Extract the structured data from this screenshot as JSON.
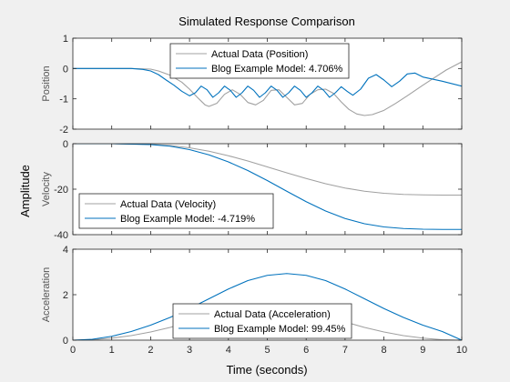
{
  "chart_data": {
    "type": "line",
    "title": "Simulated Response Comparison",
    "xlabel": "Time (seconds)",
    "shared_ylabel": "Amplitude",
    "xlim": [
      0,
      10
    ],
    "xticks": [
      0,
      1,
      2,
      3,
      4,
      5,
      6,
      7,
      8,
      9,
      10
    ],
    "colors": {
      "actual": "#a0a0a0",
      "model": "#0072bd"
    },
    "subplots": [
      {
        "ylabel": "Position",
        "ylim": [
          -2,
          1
        ],
        "yticks": [
          -2,
          -1,
          0,
          1
        ],
        "legend_position": "top-center",
        "series": [
          {
            "name": "Actual Data (Position)",
            "role": "actual",
            "x": [
              0,
              1.5,
              2,
              2.2,
              2.5,
              2.8,
              3,
              3.2,
              3.4,
              3.5,
              3.7,
              3.9,
              4.1,
              4.3,
              4.5,
              4.7,
              4.9,
              5.1,
              5.3,
              5.5,
              5.7,
              5.9,
              6.1,
              6.3,
              6.5,
              6.7,
              6.9,
              7.1,
              7.3,
              7.5,
              7.7,
              8,
              8.3,
              8.6,
              9,
              9.3,
              9.6,
              10
            ],
            "y": [
              0,
              0,
              -0.02,
              -0.08,
              -0.22,
              -0.45,
              -0.68,
              -0.95,
              -1.2,
              -1.25,
              -1.15,
              -0.85,
              -0.7,
              -0.85,
              -1.12,
              -1.2,
              -1.05,
              -0.72,
              -0.7,
              -0.95,
              -1.2,
              -1.15,
              -0.85,
              -0.7,
              -0.68,
              -0.82,
              -1.1,
              -1.35,
              -1.5,
              -1.55,
              -1.52,
              -1.38,
              -1.15,
              -0.9,
              -0.55,
              -0.3,
              -0.05,
              0.22
            ]
          },
          {
            "name": "Blog Example Model: 4.706%",
            "role": "model",
            "x": [
              0,
              1.5,
              1.8,
              2,
              2.2,
              2.4,
              2.6,
              2.8,
              3,
              3.15,
              3.3,
              3.45,
              3.6,
              3.75,
              3.9,
              4.05,
              4.2,
              4.35,
              4.5,
              4.65,
              4.8,
              4.95,
              5.1,
              5.25,
              5.4,
              5.55,
              5.7,
              5.85,
              6,
              6.15,
              6.3,
              6.45,
              6.6,
              6.75,
              6.9,
              7.05,
              7.2,
              7.4,
              7.6,
              7.8,
              8,
              8.2,
              8.4,
              8.6,
              8.8,
              9,
              9.5,
              10
            ],
            "y": [
              0,
              0,
              -0.03,
              -0.08,
              -0.2,
              -0.38,
              -0.55,
              -0.75,
              -0.9,
              -0.8,
              -0.58,
              -0.7,
              -0.95,
              -0.8,
              -0.58,
              -0.72,
              -0.95,
              -0.8,
              -0.58,
              -0.72,
              -0.95,
              -0.8,
              -0.58,
              -0.72,
              -0.95,
              -0.8,
              -0.58,
              -0.72,
              -0.95,
              -0.8,
              -0.58,
              -0.72,
              -0.95,
              -0.8,
              -0.6,
              -0.75,
              -0.88,
              -0.68,
              -0.32,
              -0.2,
              -0.38,
              -0.6,
              -0.42,
              -0.18,
              -0.15,
              -0.28,
              -0.42,
              -0.58
            ]
          }
        ]
      },
      {
        "ylabel": "Velocity",
        "ylim": [
          -40,
          0
        ],
        "yticks": [
          -40,
          -20,
          0
        ],
        "legend_position": "bottom-left",
        "series": [
          {
            "name": "Actual Data (Velocity)",
            "role": "actual",
            "x": [
              0,
              1,
              2,
              2.5,
              3,
              3.5,
              4,
              4.5,
              5,
              5.5,
              6,
              6.5,
              7,
              7.5,
              8,
              8.5,
              9,
              9.5,
              10
            ],
            "y": [
              0,
              0,
              -0.3,
              -0.8,
              -1.8,
              -3.3,
              -5.3,
              -7.6,
              -10.2,
              -12.8,
              -15.3,
              -17.6,
              -19.5,
              -20.9,
              -21.8,
              -22.3,
              -22.5,
              -22.6,
              -22.6
            ]
          },
          {
            "name": "Blog Example Model: -4.719%",
            "role": "model",
            "x": [
              0,
              1,
              2,
              2.5,
              3,
              3.5,
              4,
              4.5,
              5,
              5.5,
              6,
              6.5,
              7,
              7.5,
              8,
              8.5,
              9,
              9.5,
              10
            ],
            "y": [
              0,
              0,
              -0.4,
              -1.1,
              -2.6,
              -4.9,
              -8,
              -11.8,
              -16.2,
              -20.9,
              -25.5,
              -29.6,
              -32.9,
              -35.2,
              -36.6,
              -37.3,
              -37.6,
              -37.7,
              -37.7
            ]
          }
        ]
      },
      {
        "ylabel": "Acceleration",
        "ylim": [
          0,
          4
        ],
        "yticks": [
          0,
          2,
          4
        ],
        "legend_position": "bottom-center",
        "series": [
          {
            "name": "Actual Data (Acceleration)",
            "role": "actual",
            "x": [
              0,
              0.5,
              1,
              1.5,
              2,
              2.5,
              3,
              3.5,
              4,
              4.5,
              5,
              5.5,
              6,
              6.5,
              7,
              7.5,
              8,
              8.5,
              9,
              9.5,
              10
            ],
            "y": [
              0,
              0.02,
              0.09,
              0.2,
              0.36,
              0.56,
              0.8,
              1.05,
              1.29,
              1.47,
              1.52,
              1.47,
              1.29,
              1.05,
              0.8,
              0.56,
              0.36,
              0.2,
              0.09,
              0.02,
              0
            ]
          },
          {
            "name": "Blog Example Model: 99.45%",
            "role": "model",
            "x": [
              0,
              0.5,
              1,
              1.5,
              2,
              2.5,
              3,
              3.5,
              4,
              4.5,
              5,
              5.5,
              6,
              6.5,
              7,
              7.5,
              8,
              8.5,
              9,
              9.5,
              10
            ],
            "y": [
              0,
              0.04,
              0.17,
              0.38,
              0.66,
              1,
              1.39,
              1.82,
              2.25,
              2.62,
              2.85,
              2.93,
              2.85,
              2.62,
              2.25,
              1.82,
              1.39,
              1,
              0.66,
              0.38,
              0
            ]
          }
        ]
      }
    ]
  }
}
